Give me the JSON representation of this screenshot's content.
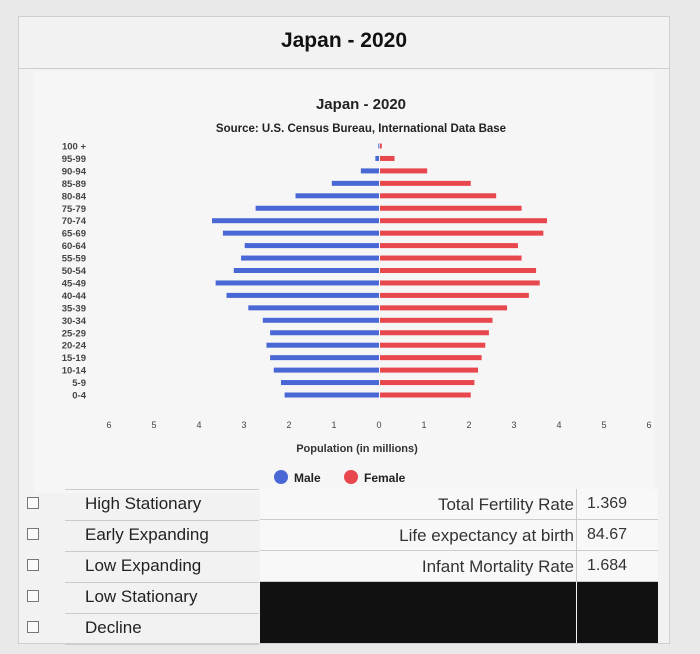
{
  "header": {
    "title": "Japan - 2020"
  },
  "chart_data": {
    "type": "bar",
    "title": "Japan - 2020",
    "subtitle": "Source: U.S. Census Bureau, International Data Base",
    "xlabel": "Population (in millions)",
    "ylabel": "",
    "categories": [
      "0-4",
      "5-9",
      "10-14",
      "15-19",
      "20-24",
      "25-29",
      "30-34",
      "35-39",
      "40-44",
      "45-49",
      "50-54",
      "55-59",
      "60-64",
      "65-69",
      "70-74",
      "75-79",
      "80-84",
      "85-89",
      "90-94",
      "95-99",
      "100 +"
    ],
    "xticks": [
      "6",
      "5",
      "4",
      "3",
      "2",
      "1",
      "0",
      "1",
      "2",
      "3",
      "4",
      "5",
      "6"
    ],
    "xlim": [
      -6,
      6
    ],
    "series": [
      {
        "name": "Male",
        "color": "#4a67d6",
        "values": [
          2.6,
          2.7,
          2.9,
          3.0,
          3.1,
          3.0,
          3.2,
          3.6,
          4.2,
          4.5,
          4.0,
          3.8,
          3.7,
          4.3,
          4.6,
          3.4,
          2.3,
          1.3,
          0.5,
          0.1,
          0.02
        ]
      },
      {
        "name": "Female",
        "color": "#e8474d",
        "values": [
          2.5,
          2.6,
          2.7,
          2.8,
          2.9,
          3.0,
          3.1,
          3.5,
          4.1,
          4.4,
          4.3,
          3.9,
          3.8,
          4.5,
          4.6,
          3.9,
          3.2,
          2.5,
          1.3,
          0.4,
          0.05
        ]
      }
    ]
  },
  "options": [
    "High Stationary",
    "Early Expanding",
    "Low Expanding",
    "Low Stationary",
    "Decline"
  ],
  "stats": [
    {
      "label": "Total Fertility Rate",
      "value": "1.369"
    },
    {
      "label": "Life expectancy at birth",
      "value": "84.67"
    },
    {
      "label": "Infant Mortality Rate",
      "value": "1.684"
    }
  ]
}
